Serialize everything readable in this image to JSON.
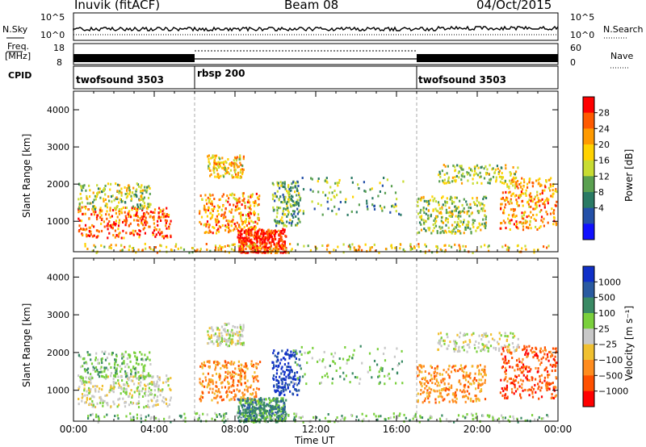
{
  "header": {
    "radar": "Inuvik (fitACF)",
    "beam": "Beam 08",
    "date": "04/Oct/2015"
  },
  "top_panels": {
    "nsky_label": "N.Sky",
    "nsearch_label": "N.Search",
    "nsky_ticks": [
      "10^5",
      "10^0"
    ],
    "nsearch_ticks": [
      "10^5",
      "10^0"
    ],
    "freq_label_1": "Freq.",
    "freq_label_2": "[MHz]",
    "freq_ticks": [
      "18",
      "8"
    ],
    "nave_label": "Nave",
    "nave_ticks": [
      "60",
      "0"
    ],
    "cpid_label": "CPID"
  },
  "chart_data": [
    {
      "type": "heatmap",
      "panel": "power",
      "ylabel": "Slant Range [km]",
      "xlabel": "",
      "colorbar_label": "Power [dB]",
      "colorbar_ticks": [
        "28",
        "24",
        "20",
        "16",
        "12",
        "8",
        "4"
      ],
      "colors": [
        "#ff0000",
        "#ff5a00",
        "#ff9a00",
        "#ffd200",
        "#c8dc32",
        "#5aa050",
        "#2a7a64",
        "#2450a8",
        "#1010ff"
      ],
      "ylim": [
        180,
        4500
      ],
      "yticks": [
        1000,
        2000,
        3000,
        4000
      ],
      "xlim": [
        "00:00",
        "24:00"
      ],
      "modes": [
        {
          "name": "twofsound 3503",
          "start_hour": 0,
          "end_hour": 6
        },
        {
          "name": "rbsp 200",
          "start_hour": 6,
          "end_hour": 17
        },
        {
          "name": "twofsound 3503",
          "start_hour": 17,
          "end_hour": 24
        }
      ]
    },
    {
      "type": "heatmap",
      "panel": "velocity",
      "ylabel": "Slant Range [km]",
      "xlabel": "Time UT",
      "colorbar_label": "Velocity [m s⁻¹]",
      "colorbar_ticks": [
        "1000",
        "500",
        "100",
        "25",
        "−25",
        "−100",
        "−500",
        "−1000"
      ],
      "colors": [
        "#1030c8",
        "#2a5aa0",
        "#3a8a64",
        "#7ad03c",
        "#c8c8c8",
        "#f0c030",
        "#ff8c1e",
        "#ff5000",
        "#ff0000"
      ],
      "ylim": [
        180,
        4500
      ],
      "yticks": [
        1000,
        2000,
        3000,
        4000
      ],
      "xlim": [
        "00:00",
        "24:00"
      ],
      "xticks": [
        "00:00",
        "04:00",
        "08:00",
        "12:00",
        "16:00",
        "20:00",
        "00:00"
      ]
    }
  ]
}
